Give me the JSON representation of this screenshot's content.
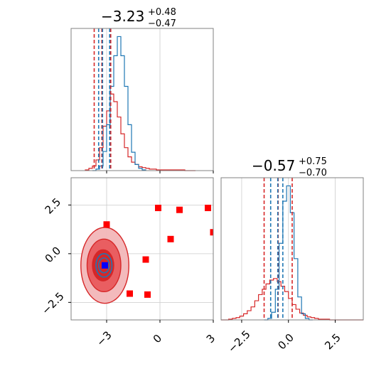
{
  "colors": {
    "red": "#d62728",
    "blue": "#1f77b4",
    "marker_red": "#ff0000",
    "marker_blue": "#0000ff",
    "grid": "#cccccc",
    "axis": "#808080"
  },
  "chart_data": [
    {
      "type": "histogram",
      "panel": "top-left",
      "title_main": "−3.23",
      "title_sup": "+0.48",
      "title_sub": "−0.47",
      "xlim": [
        -5,
        3
      ],
      "grid": true,
      "bin_width": 0.2,
      "series": [
        {
          "color": "red",
          "bin_start": -4.2,
          "counts": [
            1,
            3,
            6,
            14,
            30,
            58,
            78,
            100,
            90,
            70,
            48,
            30,
            18,
            11,
            8,
            5,
            4,
            3,
            2,
            2,
            1,
            1,
            1,
            1,
            1,
            1,
            1,
            1,
            0,
            0,
            0
          ]
        },
        {
          "color": "blue",
          "bin_start": -3.8,
          "counts": [
            0,
            2,
            6,
            25,
            60,
            110,
            150,
            175,
            150,
            110,
            60,
            24,
            8,
            3,
            1
          ]
        }
      ],
      "quantile_lines": [
        {
          "color": "red",
          "x": [
            -3.7,
            -3.27,
            -2.77
          ]
        },
        {
          "color": "blue",
          "x": [
            -3.45,
            -3.23,
            -2.83
          ]
        }
      ],
      "xticks": [
        -3,
        0,
        3
      ]
    },
    {
      "type": "histogram",
      "panel": "bottom-right",
      "title_main": "−0.57",
      "title_sup": "+0.75",
      "title_sub": "−0.70",
      "xlim": [
        -3.6,
        4.0
      ],
      "grid": true,
      "bin_width": 0.2,
      "xticks": [
        -2.5,
        0.0,
        2.5
      ],
      "xtick_labels": [
        "−2.5",
        "0.0",
        "2.5"
      ],
      "series": [
        {
          "color": "red",
          "bin_start": -3.6,
          "counts": [
            0,
            0,
            1,
            2,
            3,
            5,
            8,
            12,
            17,
            25,
            33,
            40,
            47,
            52,
            54,
            50,
            44,
            37,
            28,
            20,
            14,
            9,
            6,
            4,
            3,
            2,
            1,
            1,
            1,
            0,
            0,
            0,
            0,
            0,
            0,
            0,
            0,
            0
          ]
        },
        {
          "color": "blue",
          "bin_start": -1.3,
          "counts": [
            0,
            2,
            10,
            40,
            100,
            155,
            175,
            140,
            80,
            30,
            8,
            2,
            0
          ]
        }
      ],
      "quantile_lines": [
        {
          "color": "red",
          "x": [
            -1.3,
            -0.55,
            0.2
          ]
        },
        {
          "color": "blue",
          "x": [
            -0.95,
            -0.57,
            -0.3
          ]
        }
      ]
    },
    {
      "type": "scatter",
      "panel": "bottom-left",
      "xlim": [
        -5,
        3
      ],
      "ylim": [
        -3.4,
        3.9
      ],
      "grid": true,
      "xticks": [
        -3,
        0,
        3
      ],
      "xtick_labels": [
        "−3",
        "0",
        "3"
      ],
      "yticks": [
        -2.5,
        0.0,
        2.5
      ],
      "ytick_labels": [
        "−2.5",
        "0.0",
        "2.5"
      ],
      "red_markers": [
        {
          "x": -3.0,
          "y": 1.5
        },
        {
          "x": -0.1,
          "y": 2.35
        },
        {
          "x": 1.1,
          "y": 2.25
        },
        {
          "x": 2.7,
          "y": 2.35
        },
        {
          "x": 0.6,
          "y": 0.75
        },
        {
          "x": -0.8,
          "y": -0.3
        },
        {
          "x": -1.7,
          "y": -2.05
        },
        {
          "x": -0.7,
          "y": -2.1
        },
        {
          "x": 3.0,
          "y": 1.1
        }
      ],
      "blue_markers": [
        {
          "x": -3.1,
          "y": -0.6
        }
      ],
      "red_contours": [
        {
          "cx": -3.1,
          "cy": -0.6,
          "rx": 1.35,
          "ry": 1.95
        },
        {
          "cx": -3.15,
          "cy": -0.6,
          "rx": 0.95,
          "ry": 1.35
        },
        {
          "cx": -3.2,
          "cy": -0.6,
          "rx": 0.6,
          "ry": 0.8
        }
      ],
      "blue_contours": [
        {
          "cx": -3.15,
          "cy": -0.6,
          "rx": 0.45,
          "ry": 0.6
        },
        {
          "cx": -3.15,
          "cy": -0.6,
          "rx": 0.3,
          "ry": 0.38
        }
      ]
    }
  ]
}
